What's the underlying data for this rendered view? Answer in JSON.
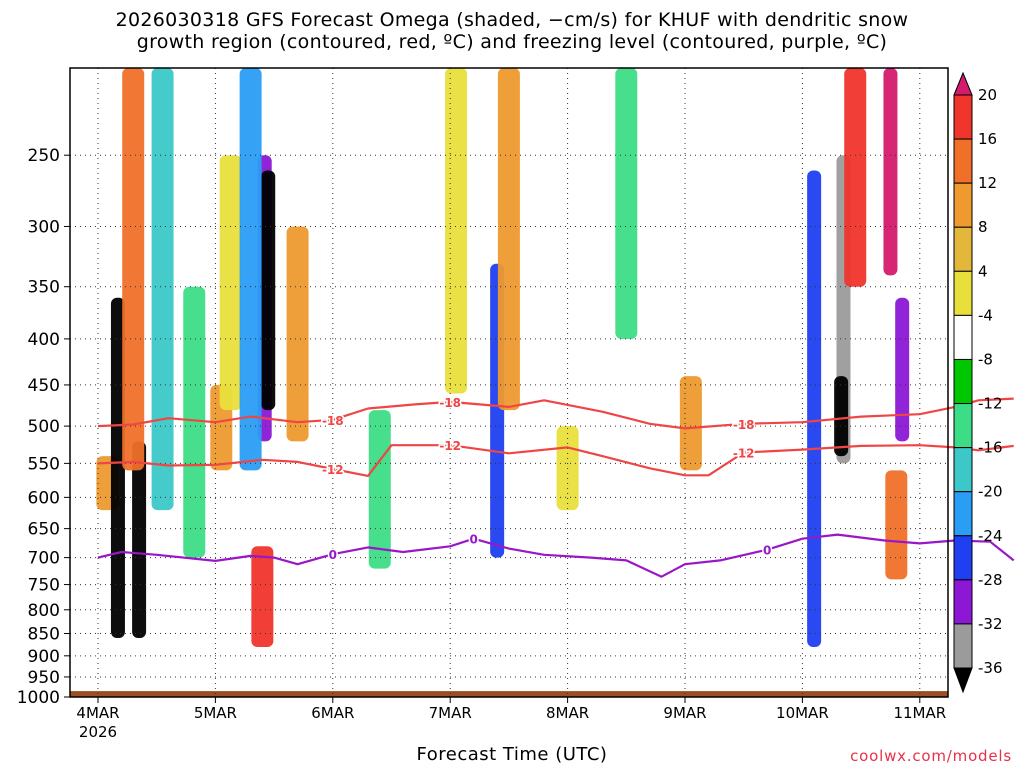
{
  "title_line1": "2026030318 GFS Forecast Omega (shaded, −cm/s) for KHUF with dendritic snow",
  "title_line2": "growth region (contoured, red, ºC) and freezing level (contoured, purple, ºC)",
  "credit": "coolwx.com/models",
  "chart_data": {
    "type": "heatmap",
    "title": "2026030318 GFS Forecast Omega (shaded, −cm/s) for KHUF with dendritic snow growth region (contoured, red, ºC) and freezing level (contoured, purple, ºC)",
    "xlabel": "Forecast Time (UTC)",
    "ylabel": "",
    "y_ticks": [
      250,
      300,
      350,
      400,
      450,
      500,
      550,
      600,
      650,
      700,
      750,
      800,
      850,
      900,
      950,
      1000
    ],
    "ylim": [
      1000,
      200
    ],
    "y_scale": "log",
    "x_ticks": [
      "4MAR",
      "5MAR",
      "6MAR",
      "7MAR",
      "8MAR",
      "9MAR",
      "10MAR",
      "11MAR"
    ],
    "x_sub_label": "2026",
    "grid": true,
    "colorbar": {
      "labels": [
        "20",
        "16",
        "12",
        "8",
        "4",
        "-4",
        "-8",
        "-12",
        "-16",
        "-20",
        "-24",
        "-28",
        "-32",
        "-36"
      ],
      "colors": [
        "#d51a6d",
        "#f0352c",
        "#f0702a",
        "#ee9a2e",
        "#e2b73a",
        "#e8df3b",
        "#ffffff",
        "#00c800",
        "#3ddc86",
        "#3cc8c8",
        "#2a9df4",
        "#1f3ff0",
        "#8c18d6",
        "#9b9b9b",
        "#000000"
      ]
    },
    "contours": [
      {
        "label": "-18",
        "color": "#f04545",
        "points": [
          [
            0,
            500
          ],
          [
            0.3,
            498
          ],
          [
            0.6,
            490
          ],
          [
            1.0,
            495
          ],
          [
            1.3,
            488
          ],
          [
            1.7,
            495
          ],
          [
            2.0,
            492
          ],
          [
            2.3,
            478
          ],
          [
            2.7,
            473
          ],
          [
            3.0,
            470
          ],
          [
            3.5,
            476
          ],
          [
            3.8,
            468
          ],
          [
            4.3,
            482
          ],
          [
            4.7,
            497
          ],
          [
            5.0,
            503
          ],
          [
            5.5,
            497
          ],
          [
            6.0,
            495
          ],
          [
            6.5,
            488
          ],
          [
            7.0,
            485
          ],
          [
            7.3,
            476
          ],
          [
            7.5,
            468
          ],
          [
            7.8,
            466
          ]
        ]
      },
      {
        "label": "-12",
        "color": "#f04545",
        "points": [
          [
            0,
            550
          ],
          [
            0.3,
            548
          ],
          [
            0.6,
            553
          ],
          [
            1.0,
            552
          ],
          [
            1.4,
            545
          ],
          [
            1.7,
            548
          ],
          [
            2.0,
            558
          ],
          [
            2.3,
            568
          ],
          [
            2.5,
            525
          ],
          [
            3.0,
            525
          ],
          [
            3.5,
            536
          ],
          [
            4.0,
            528
          ],
          [
            4.3,
            540
          ],
          [
            4.7,
            557
          ],
          [
            5.0,
            567
          ],
          [
            5.2,
            567
          ],
          [
            5.5,
            535
          ],
          [
            6.0,
            531
          ],
          [
            6.5,
            526
          ],
          [
            7.0,
            525
          ],
          [
            7.3,
            528
          ],
          [
            7.5,
            532
          ],
          [
            7.8,
            526
          ]
        ]
      },
      {
        "label": "0",
        "color": "#9a17c8",
        "points": [
          [
            0,
            700
          ],
          [
            0.2,
            690
          ],
          [
            0.5,
            695
          ],
          [
            1.0,
            706
          ],
          [
            1.3,
            697
          ],
          [
            1.5,
            700
          ],
          [
            1.7,
            712
          ],
          [
            2.0,
            694
          ],
          [
            2.3,
            682
          ],
          [
            2.6,
            690
          ],
          [
            3.0,
            680
          ],
          [
            3.2,
            667
          ],
          [
            3.5,
            684
          ],
          [
            3.8,
            695
          ],
          [
            4.2,
            700
          ],
          [
            4.5,
            705
          ],
          [
            4.8,
            735
          ],
          [
            5.0,
            712
          ],
          [
            5.3,
            705
          ],
          [
            5.7,
            686
          ],
          [
            6.0,
            667
          ],
          [
            6.3,
            660
          ],
          [
            6.7,
            670
          ],
          [
            7.0,
            675
          ],
          [
            7.3,
            670
          ],
          [
            7.6,
            672
          ],
          [
            7.8,
            705
          ]
        ]
      }
    ],
    "omega_cells": [
      {
        "t": 0.08,
        "p_top": 540,
        "p_bot": 620,
        "v": 8
      },
      {
        "t": 0.17,
        "p_top": 360,
        "p_bot": 860,
        "v": -32
      },
      {
        "t": 0.35,
        "p_top": 520,
        "p_bot": 860,
        "v": -36
      },
      {
        "t": 0.3,
        "p_top": 200,
        "p_bot": 560,
        "v": 12
      },
      {
        "t": 0.55,
        "p_top": 200,
        "p_bot": 620,
        "v": -12
      },
      {
        "t": 0.82,
        "p_top": 350,
        "p_bot": 700,
        "v": -8
      },
      {
        "t": 1.05,
        "p_top": 450,
        "p_bot": 560,
        "v": 8
      },
      {
        "t": 1.13,
        "p_top": 250,
        "p_bot": 480,
        "v": 4
      },
      {
        "t": 1.42,
        "p_top": 250,
        "p_bot": 520,
        "v": -24
      },
      {
        "t": 1.45,
        "p_top": 260,
        "p_bot": 480,
        "v": -36
      },
      {
        "t": 1.4,
        "p_top": 680,
        "p_bot": 880,
        "v": 16
      },
      {
        "t": 1.3,
        "p_top": 200,
        "p_bot": 560,
        "v": -16
      },
      {
        "t": 1.7,
        "p_top": 300,
        "p_bot": 520,
        "v": 8
      },
      {
        "t": 2.4,
        "p_top": 480,
        "p_bot": 720,
        "v": -8
      },
      {
        "t": 3.05,
        "p_top": 200,
        "p_bot": 460,
        "v": 4
      },
      {
        "t": 3.4,
        "p_top": 330,
        "p_bot": 700,
        "v": -20
      },
      {
        "t": 3.5,
        "p_top": 200,
        "p_bot": 480,
        "v": 8
      },
      {
        "t": 4.0,
        "p_top": 500,
        "p_bot": 620,
        "v": 4
      },
      {
        "t": 4.5,
        "p_top": 200,
        "p_bot": 400,
        "v": -8
      },
      {
        "t": 5.05,
        "p_top": 440,
        "p_bot": 560,
        "v": 8
      },
      {
        "t": 6.1,
        "p_top": 260,
        "p_bot": 880,
        "v": -20
      },
      {
        "t": 6.35,
        "p_top": 250,
        "p_bot": 550,
        "v": -28
      },
      {
        "t": 6.33,
        "p_top": 440,
        "p_bot": 540,
        "v": -32
      },
      {
        "t": 6.45,
        "p_top": 200,
        "p_bot": 350,
        "v": 16
      },
      {
        "t": 6.75,
        "p_top": 200,
        "p_bot": 340,
        "v": 20
      },
      {
        "t": 6.85,
        "p_top": 360,
        "p_bot": 520,
        "v": -24
      },
      {
        "t": 6.8,
        "p_top": 560,
        "p_bot": 740,
        "v": 12
      }
    ]
  }
}
